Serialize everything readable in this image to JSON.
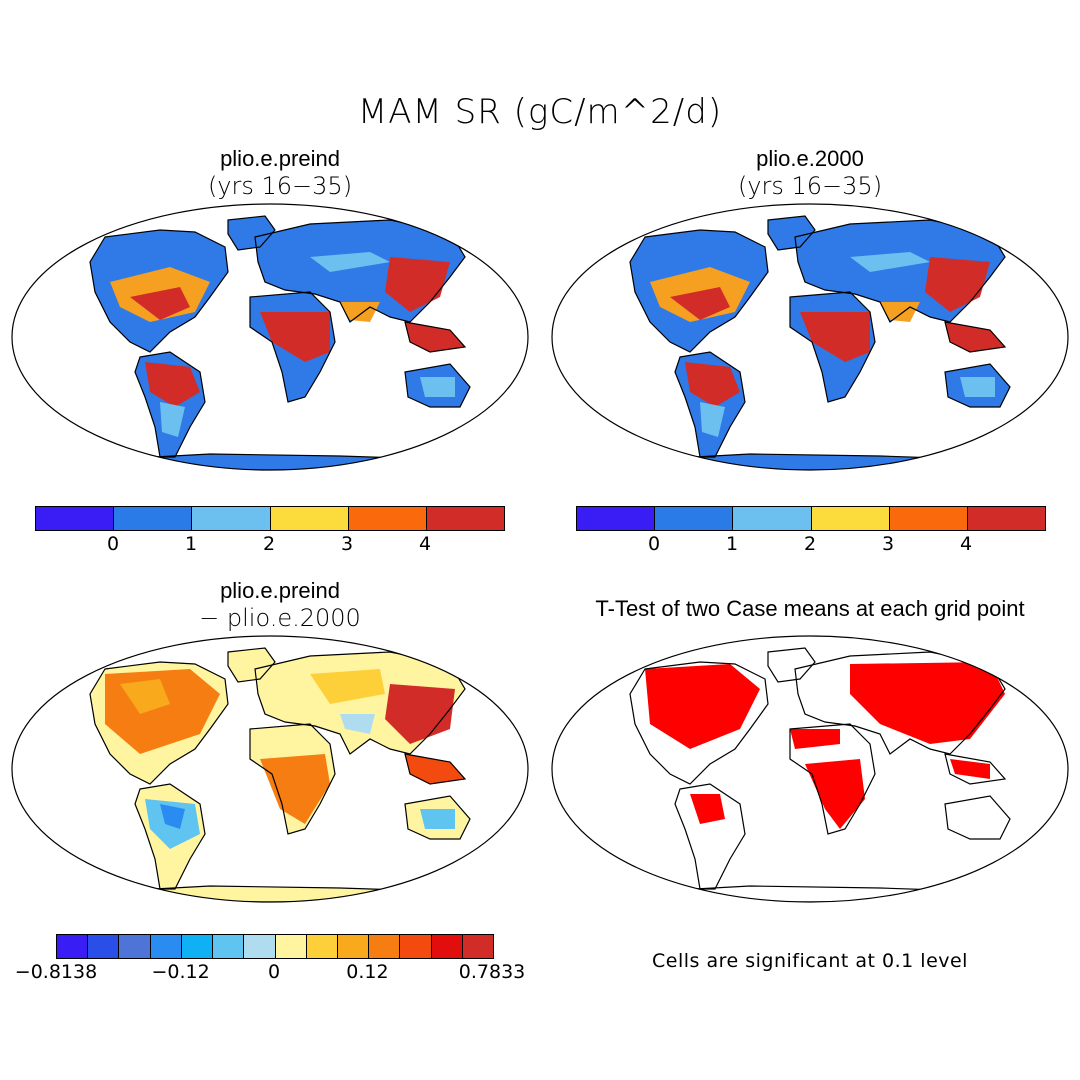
{
  "title": "MAM SR (gC/m^2/d)",
  "panels": [
    {
      "title": "plio.e.preind",
      "subtitle": "(yrs 16−35)"
    },
    {
      "title": "plio.e.2000",
      "subtitle": "(yrs 16−35)"
    },
    {
      "title": "plio.e.preind",
      "subtitle": "− plio.e.2000"
    },
    {
      "title": "T-Test of two Case means at each grid point",
      "subtitle": ""
    }
  ],
  "colorbar_abs": {
    "colors": [
      "#3a1df5",
      "#2a7be8",
      "#6cc0ef",
      "#fcdc3c",
      "#fa6a0c",
      "#d22c28"
    ],
    "ticks": [
      "0",
      "1",
      "2",
      "3",
      "4"
    ]
  },
  "colorbar_diff": {
    "colors": [
      "#3a1df5",
      "#2a4ee8",
      "#4f74d8",
      "#2a8cf0",
      "#10b0f5",
      "#60c4f0",
      "#b0dcf0",
      "#fff5a0",
      "#fdd03a",
      "#f9a91c",
      "#f67d12",
      "#f34a10",
      "#e20e0e",
      "#d22c28"
    ],
    "ticks": [
      "−0.8138",
      "−0.12",
      "0",
      "0.12",
      "0.7833"
    ]
  },
  "note": "Cells are significant at 0.1 level"
}
